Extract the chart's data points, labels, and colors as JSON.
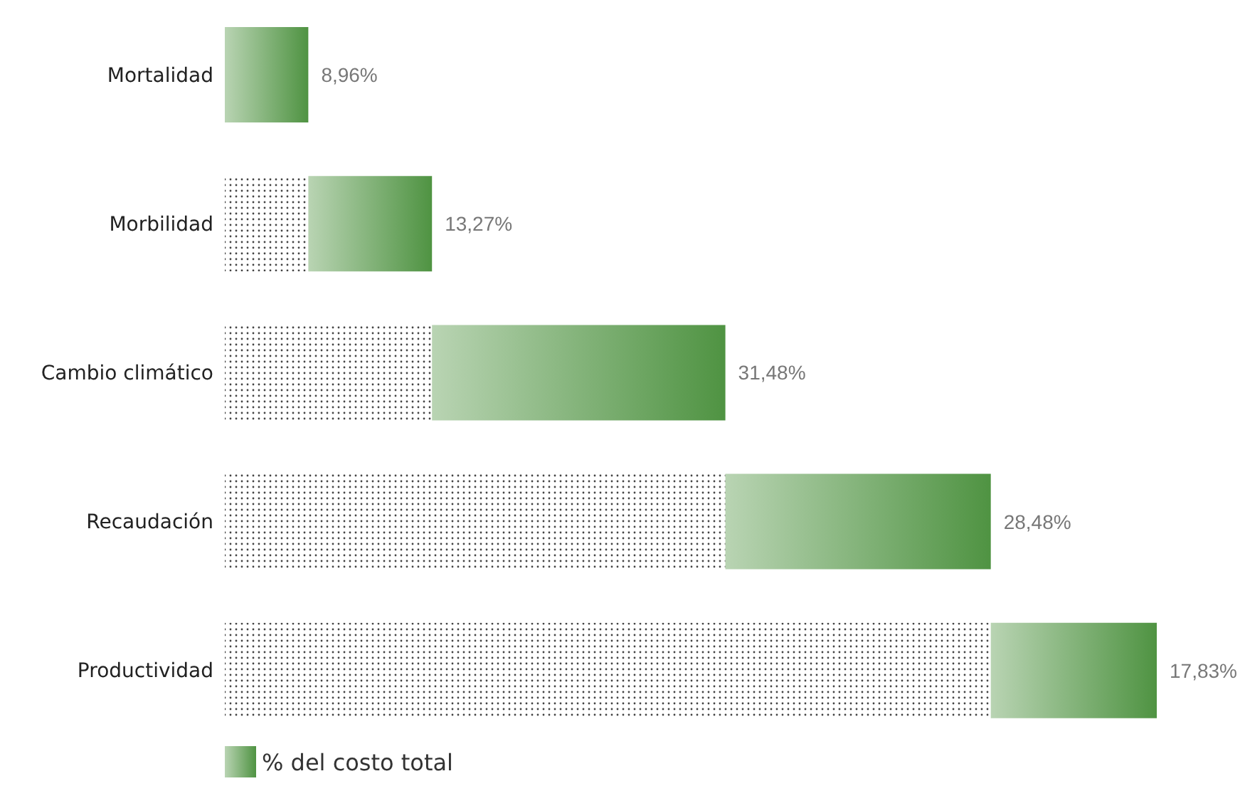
{
  "chart_data": {
    "type": "bar",
    "orientation": "horizontal",
    "stacked": true,
    "categories": [
      "Mortalidad",
      "Morbilidad",
      "Cambio climático",
      "Recaudación",
      "Productividad"
    ],
    "series": [
      {
        "color": "#444444",
        "values": [
          0,
          8.96,
          22.23,
          53.71,
          82.19
        ]
      },
      {
        "name": "% del costo total",
        "color": "#4f9342",
        "values": [
          8.96,
          13.27,
          31.48,
          28.48,
          17.83
        ],
        "value_labels": [
          "8,96%",
          "13,27%",
          "31,48%",
          "28,48%",
          "17,83%"
        ]
      }
    ],
    "xlim": [
      0,
      100
    ],
    "tick_labels": "y",
    "legend": "bottom left"
  }
}
